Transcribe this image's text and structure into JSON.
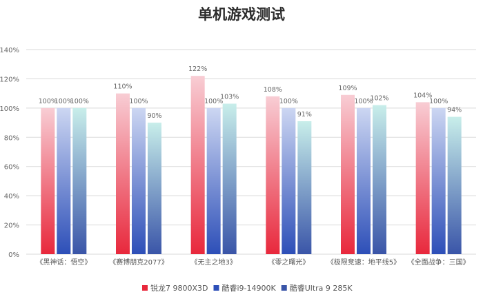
{
  "chart_data": {
    "type": "bar",
    "title": "单机游戏测试",
    "categories": [
      "《黑神话：悟空》",
      "《赛博朋克2077》",
      "《无主之地3》",
      "《零之曙光》",
      "《极限竞速：地平线5》",
      "《全面战争：三国》"
    ],
    "series": [
      {
        "name": "锐龙7 9800X3D",
        "values": [
          100,
          110,
          122,
          108,
          109,
          104
        ],
        "labels": [
          "100%",
          "110%",
          "122%",
          "108%",
          "109%",
          "104%"
        ],
        "color_top": "#f8cdd4",
        "color_bottom": "#e8283c"
      },
      {
        "name": "酷睿i9-14900K",
        "values": [
          100,
          100,
          100,
          100,
          100,
          100
        ],
        "labels": [
          "100%",
          "100%",
          "100%",
          "100%",
          "100%",
          "100%"
        ],
        "color_top": "#ccd6f2",
        "color_bottom": "#2d4fb8"
      },
      {
        "name": "酷睿Ultra 9 285K",
        "values": [
          100,
          90,
          103,
          91,
          102,
          94
        ],
        "labels": [
          "100%",
          "90%",
          "103%",
          "91%",
          "102%",
          "94%"
        ],
        "color_top": "#c8eeea",
        "color_bottom": "#3a55a8"
      }
    ],
    "ylim": [
      0,
      140
    ],
    "yticks": [
      "0%",
      "20%",
      "40%",
      "60%",
      "80%",
      "100%",
      "120%",
      "140%"
    ],
    "ytick_values": [
      0,
      20,
      40,
      60,
      80,
      100,
      120,
      140
    ],
    "grid": true,
    "legend_position": "bottom-center",
    "xlabel": "",
    "ylabel": ""
  }
}
